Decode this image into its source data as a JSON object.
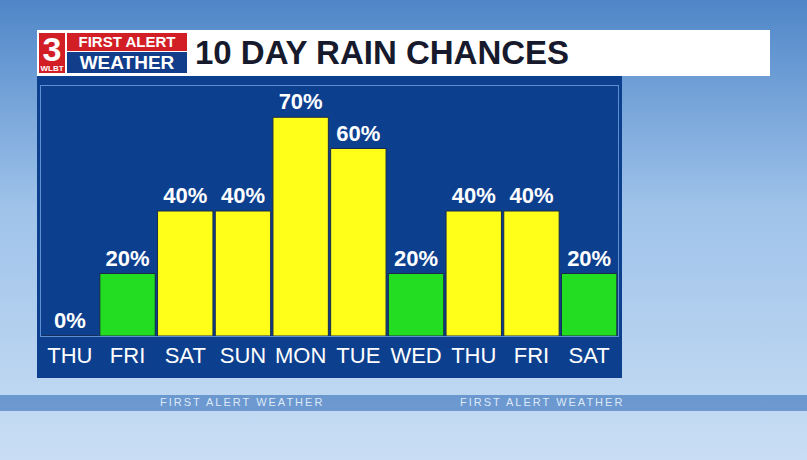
{
  "chart_data": {
    "type": "bar",
    "title": "10 DAY RAIN CHANCES",
    "annotations": [
      "3",
      "WLBT",
      "FIRST ALERT",
      "WEATHER",
      "FIRST ALERT WEATHER"
    ],
    "categories": [
      "THU",
      "FRI",
      "SAT",
      "SUN",
      "MON",
      "TUE",
      "WED",
      "THU",
      "FRI",
      "SAT"
    ],
    "values": [
      0,
      20,
      40,
      40,
      70,
      60,
      20,
      40,
      40,
      20
    ],
    "value_labels": [
      "0%",
      "20%",
      "40%",
      "40%",
      "70%",
      "60%",
      "20%",
      "40%",
      "40%",
      "20%"
    ],
    "colors": [
      "#22dd22",
      "#22dd22",
      "#ffff1a",
      "#ffff1a",
      "#ffff1a",
      "#ffff1a",
      "#22dd22",
      "#ffff1a",
      "#ffff1a",
      "#22dd22"
    ],
    "ylim": [
      0,
      80
    ],
    "yticks": [],
    "grid": false,
    "data_labels": true,
    "tick_labels": "x"
  }
}
